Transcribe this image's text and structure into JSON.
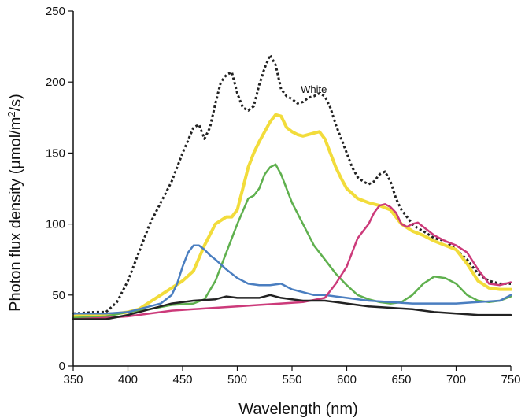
{
  "chart_data": {
    "type": "line",
    "xlabel": "Wavelength (nm)",
    "ylabel_main": "Photon flux density (µmol/m",
    "ylabel_sup": "2",
    "ylabel_tail": "/s)",
    "xlim": [
      350,
      750
    ],
    "ylim": [
      0,
      250
    ],
    "xticks": [
      350,
      400,
      450,
      500,
      550,
      600,
      650,
      700,
      750
    ],
    "yticks": [
      0,
      50,
      100,
      150,
      200,
      250
    ],
    "xtick_labels": [
      "350",
      "400",
      "450",
      "500",
      "550",
      "600",
      "650",
      "700",
      "750"
    ],
    "ytick_labels": [
      "0",
      "50",
      "100",
      "150",
      "200",
      "250"
    ],
    "grid": false,
    "series": [
      {
        "name": "White",
        "color": "#222222",
        "style": "dotted",
        "width": 3,
        "label_at": [
          558,
          195
        ],
        "x": [
          350,
          370,
          380,
          390,
          400,
          410,
          420,
          430,
          440,
          450,
          460,
          465,
          470,
          475,
          480,
          485,
          490,
          495,
          500,
          505,
          510,
          515,
          520,
          525,
          530,
          535,
          540,
          545,
          550,
          555,
          560,
          565,
          570,
          575,
          580,
          585,
          590,
          595,
          600,
          605,
          610,
          615,
          620,
          625,
          630,
          635,
          640,
          645,
          650,
          655,
          660,
          665,
          670,
          680,
          690,
          700,
          710,
          720,
          730,
          740,
          750
        ],
        "y": [
          37,
          38,
          38,
          45,
          60,
          80,
          100,
          115,
          130,
          150,
          168,
          170,
          160,
          168,
          185,
          200,
          205,
          207,
          192,
          182,
          180,
          183,
          198,
          210,
          219,
          212,
          195,
          190,
          188,
          185,
          186,
          189,
          190,
          192,
          190,
          182,
          170,
          160,
          150,
          140,
          133,
          130,
          128,
          130,
          135,
          137,
          130,
          118,
          110,
          105,
          100,
          97,
          95,
          90,
          88,
          82,
          75,
          65,
          60,
          58,
          58
        ]
      },
      {
        "name": "",
        "color": "#f2dc3b",
        "style": "solid",
        "width": 4,
        "x": [
          350,
          370,
          390,
          400,
          410,
          420,
          430,
          440,
          450,
          460,
          470,
          480,
          490,
          495,
          500,
          505,
          510,
          515,
          520,
          525,
          530,
          535,
          540,
          545,
          550,
          555,
          560,
          565,
          570,
          575,
          580,
          585,
          590,
          595,
          600,
          610,
          620,
          630,
          640,
          650,
          660,
          670,
          680,
          690,
          700,
          710,
          720,
          730,
          740,
          750
        ],
        "y": [
          35,
          36,
          37,
          38,
          40,
          45,
          50,
          55,
          60,
          67,
          85,
          100,
          105,
          105,
          110,
          125,
          140,
          150,
          158,
          165,
          172,
          177,
          176,
          168,
          165,
          163,
          162,
          163,
          164,
          165,
          160,
          150,
          140,
          132,
          125,
          118,
          115,
          113,
          110,
          100,
          95,
          92,
          88,
          85,
          82,
          72,
          60,
          55,
          54,
          54
        ]
      },
      {
        "name": "",
        "color": "#5fb04e",
        "style": "solid",
        "width": 2.5,
        "x": [
          350,
          380,
          400,
          420,
          440,
          460,
          470,
          480,
          490,
          500,
          510,
          515,
          520,
          525,
          530,
          535,
          540,
          550,
          560,
          570,
          580,
          590,
          600,
          610,
          620,
          630,
          640,
          650,
          660,
          670,
          680,
          690,
          700,
          710,
          720,
          730,
          740,
          750
        ],
        "y": [
          34,
          35,
          38,
          40,
          43,
          44,
          47,
          60,
          80,
          100,
          118,
          120,
          125,
          135,
          140,
          142,
          135,
          115,
          100,
          85,
          75,
          65,
          57,
          50,
          47,
          45,
          44,
          45,
          50,
          58,
          63,
          62,
          58,
          50,
          46,
          45,
          46,
          49
        ]
      },
      {
        "name": "",
        "color": "#4a7ec0",
        "style": "solid",
        "width": 2.5,
        "x": [
          350,
          380,
          400,
          410,
          420,
          430,
          440,
          445,
          450,
          455,
          460,
          465,
          470,
          475,
          480,
          490,
          500,
          510,
          520,
          530,
          540,
          550,
          560,
          570,
          580,
          590,
          600,
          620,
          640,
          660,
          680,
          700,
          720,
          740,
          750
        ],
        "y": [
          37,
          37,
          38,
          40,
          42,
          44,
          50,
          58,
          70,
          80,
          85,
          85,
          82,
          78,
          75,
          68,
          62,
          58,
          57,
          57,
          58,
          54,
          52,
          50,
          50,
          49,
          48,
          46,
          45,
          44,
          44,
          44,
          45,
          46,
          50
        ]
      },
      {
        "name": "",
        "color": "#cc3a7a",
        "style": "solid",
        "width": 2.5,
        "x": [
          350,
          380,
          400,
          420,
          440,
          460,
          480,
          500,
          520,
          540,
          560,
          580,
          590,
          600,
          605,
          610,
          615,
          620,
          625,
          630,
          635,
          640,
          645,
          650,
          655,
          660,
          665,
          670,
          680,
          690,
          700,
          710,
          720,
          730,
          740,
          750
        ],
        "y": [
          33,
          34,
          35,
          37,
          39,
          40,
          41,
          42,
          43,
          44,
          45,
          48,
          58,
          70,
          80,
          90,
          95,
          100,
          108,
          113,
          114,
          112,
          108,
          100,
          98,
          100,
          101,
          98,
          92,
          88,
          85,
          80,
          68,
          58,
          57,
          59
        ]
      },
      {
        "name": "",
        "color": "#222222",
        "style": "solid",
        "width": 2.5,
        "x": [
          350,
          380,
          400,
          420,
          440,
          460,
          480,
          490,
          500,
          510,
          520,
          530,
          540,
          550,
          560,
          570,
          580,
          590,
          600,
          620,
          640,
          660,
          680,
          700,
          720,
          740,
          750
        ],
        "y": [
          33,
          33,
          36,
          40,
          44,
          46,
          47,
          49,
          48,
          48,
          48,
          50,
          48,
          47,
          46,
          46,
          46,
          45,
          44,
          42,
          41,
          40,
          38,
          37,
          36,
          36,
          36
        ]
      }
    ]
  }
}
